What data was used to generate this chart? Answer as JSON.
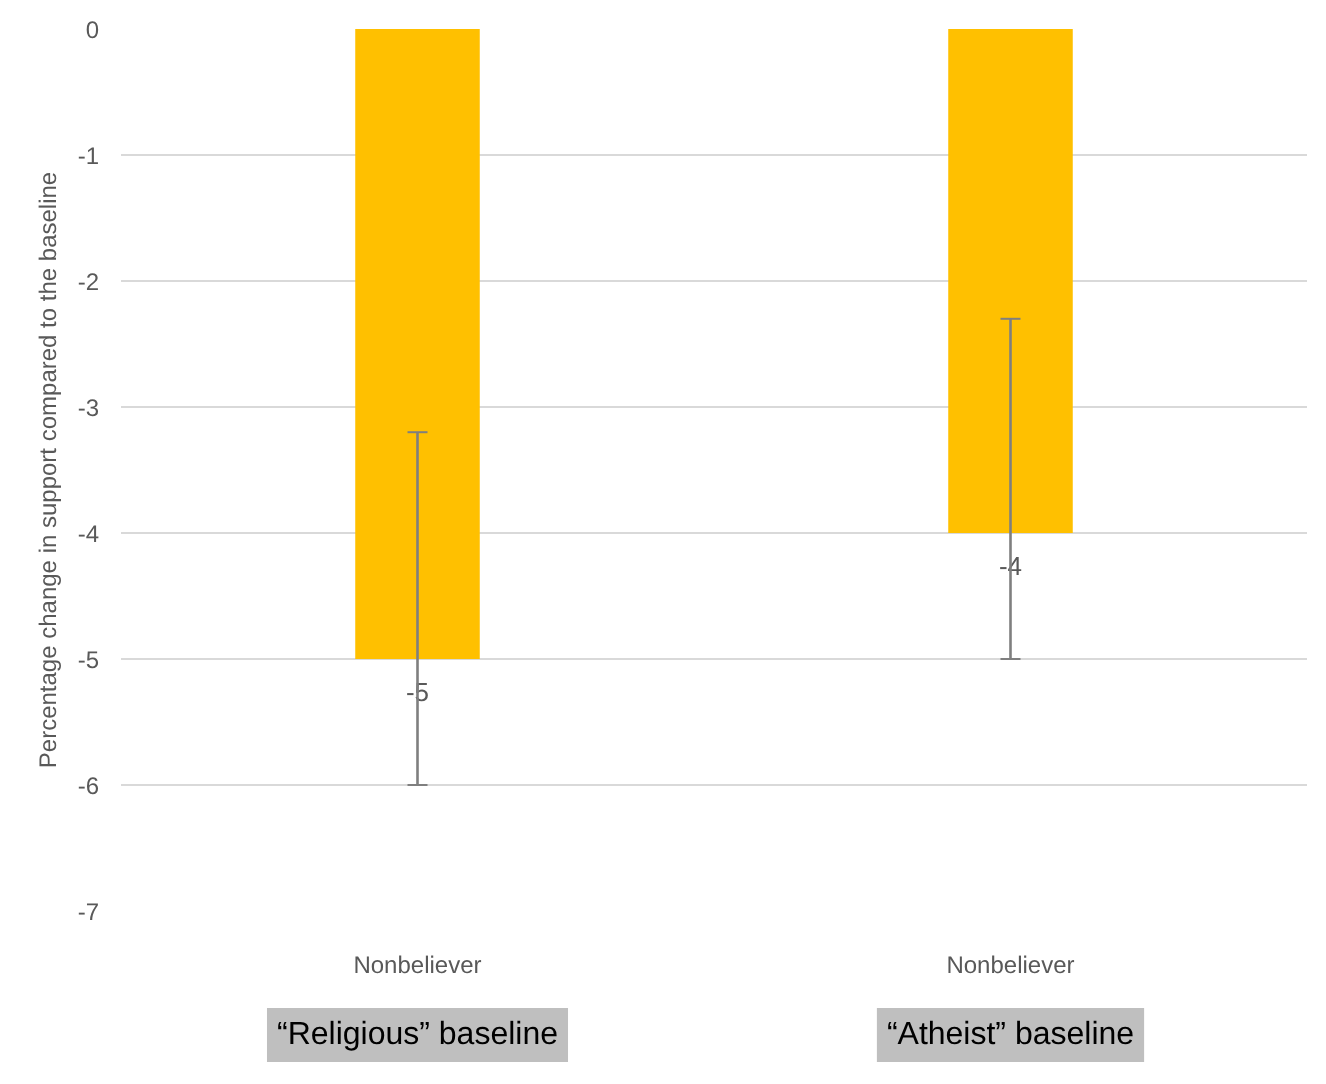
{
  "chart_data": {
    "type": "bar",
    "ylabel": "Percentage change in support compared to the baseline",
    "categories": [
      "Nonbeliever",
      "Nonbeliever"
    ],
    "values": [
      -5,
      -4
    ],
    "errors": [
      [
        -6,
        -3.2
      ],
      [
        -5,
        -2.3
      ]
    ],
    "color": "#ffc000",
    "data_labels": true,
    "ylim": [
      -7,
      0
    ],
    "yticks": [
      0,
      -1,
      -2,
      -3,
      -4,
      -5,
      -6,
      -7
    ],
    "grid": "y",
    "annotations": [
      "“Religious” baseline",
      "“Atheist” baseline"
    ]
  }
}
